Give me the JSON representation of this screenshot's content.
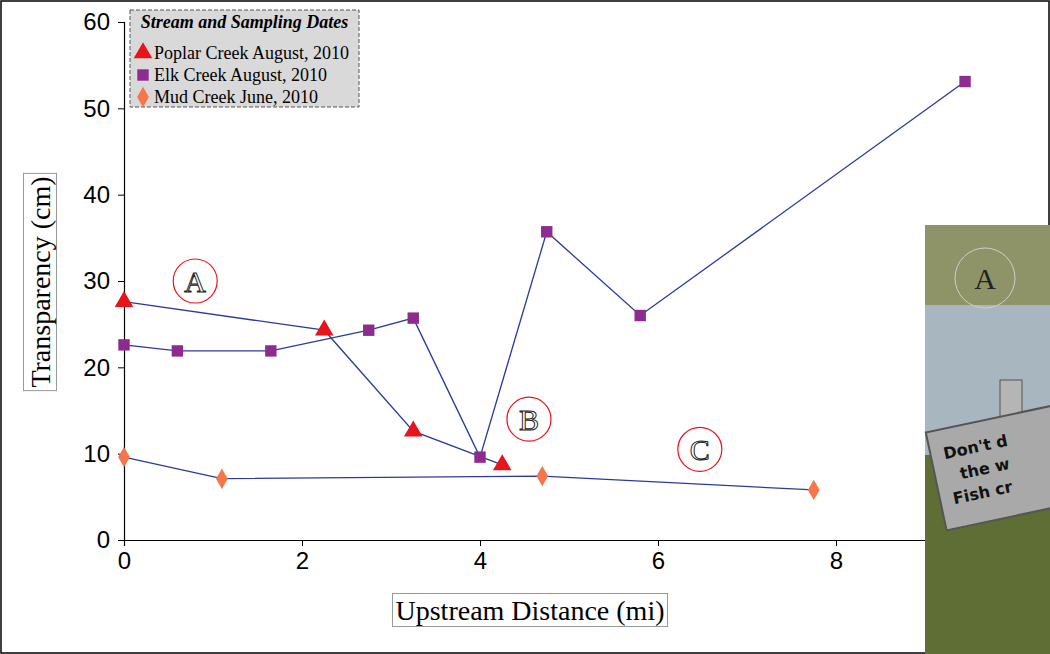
{
  "chart_data": {
    "type": "line",
    "legend_title": "Stream and Sampling Dates",
    "legend": "upper left",
    "x_label": "Upstream Distance (mi)",
    "y_label": "Transparency (cm)",
    "xlim": [
      0,
      10
    ],
    "xticks": [
      0,
      2,
      4,
      6,
      8
    ],
    "ylim": [
      0,
      60
    ],
    "yticks": [
      0,
      10,
      20,
      30,
      40,
      50,
      60
    ],
    "grid": false,
    "series": [
      {
        "name": "Poplar Creek August, 2010",
        "color": "#e8141b",
        "marker": "triangle",
        "line_style": "solid",
        "x": [
          0,
          2.25,
          3.25,
          4.25
        ],
        "values": [
          27.6,
          24.3,
          12.6,
          8.7
        ]
      },
      {
        "name": "Elk Creek August, 2010",
        "color": "#8e2b8f",
        "marker": "square",
        "line_style": "solid",
        "x": [
          0,
          0.6,
          1.65,
          2.75,
          3.25,
          4.0,
          4.75,
          5.8,
          9.45
        ],
        "values": [
          22.6,
          21.9,
          21.9,
          24.3,
          25.7,
          9.6,
          35.7,
          26.0,
          53.1
        ]
      },
      {
        "name": "Mud Creek June, 2010",
        "color": "#f4764a",
        "marker": "diamond",
        "line_style": "solid",
        "x": [
          0,
          1.1,
          4.7,
          7.75
        ],
        "values": [
          9.6,
          7.1,
          7.4,
          5.8
        ]
      }
    ],
    "annotations": [
      {
        "text": "A",
        "x": 0.8,
        "y": 30
      },
      {
        "text": "B",
        "x": 4.55,
        "y": 14
      },
      {
        "text": "C",
        "x": 6.47,
        "y": 10.5
      }
    ],
    "photo_texts": {
      "label": "A",
      "sign": [
        "Don't d",
        "the w",
        "Fish cr"
      ]
    }
  }
}
